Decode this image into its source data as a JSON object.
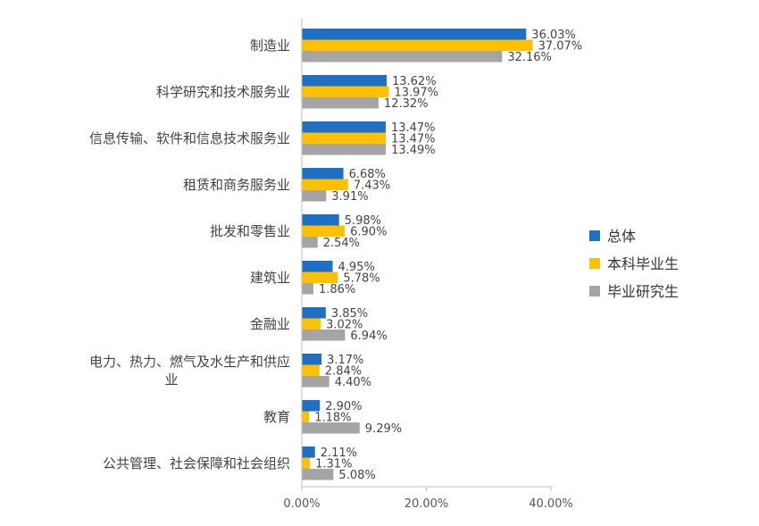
{
  "chart_data": {
    "type": "bar",
    "orientation": "horizontal",
    "categories": [
      "制造业",
      "科学研究和技术服务业",
      "信息传输、软件和信息技术服务业",
      "租赁和商务服务业",
      "批发和零售业",
      "建筑业",
      "金融业",
      "电力、热力、燃气及水生产和供应业",
      "教育",
      "公共管理、社会保障和社会组织"
    ],
    "category_label_lines": [
      [
        "制造业"
      ],
      [
        "科学研究和技术服务业"
      ],
      [
        "信息传输、软件和信息技术服务业"
      ],
      [
        "租赁和商务服务业"
      ],
      [
        "批发和零售业"
      ],
      [
        "建筑业"
      ],
      [
        "金融业"
      ],
      [
        "电力、热力、燃气及水生产和供应",
        "业"
      ],
      [
        "教育"
      ],
      [
        "公共管理、社会保障和社会组织"
      ]
    ],
    "series": [
      {
        "name": "总体",
        "color": "#1f6fc5",
        "values": [
          36.03,
          13.62,
          13.47,
          6.68,
          5.98,
          4.95,
          3.85,
          3.17,
          2.9,
          2.11
        ],
        "labels": [
          "36.03%",
          "13.62%",
          "13.47%",
          "6.68%",
          "5.98%",
          "4.95%",
          "3.85%",
          "3.17%",
          "2.90%",
          "2.11%"
        ]
      },
      {
        "name": "本科毕业生",
        "color": "#ffc000",
        "values": [
          37.07,
          13.97,
          13.47,
          7.43,
          6.9,
          5.78,
          3.02,
          2.84,
          1.18,
          1.31
        ],
        "labels": [
          "37.07%",
          "13.97%",
          "13.47%",
          "7.43%",
          "6.90%",
          "5.78%",
          "3.02%",
          "2.84%",
          "1.18%",
          "1.31%"
        ]
      },
      {
        "name": "毕业研究生",
        "color": "#a5a5a5",
        "values": [
          32.16,
          12.32,
          13.49,
          3.91,
          2.54,
          1.86,
          6.94,
          4.4,
          9.29,
          5.08
        ],
        "labels": [
          "32.16%",
          "12.32%",
          "13.49%",
          "3.91%",
          "2.54%",
          "1.86%",
          "6.94%",
          "4.40%",
          "9.29%",
          "5.08%"
        ]
      }
    ],
    "xlim": [
      0,
      40
    ],
    "xticks": [
      0,
      20,
      40
    ],
    "xtick_labels": [
      "0.00%",
      "20.00%",
      "40.00%"
    ],
    "legend_position": "right",
    "grid": false,
    "axis_color": "#bfbfbf"
  }
}
